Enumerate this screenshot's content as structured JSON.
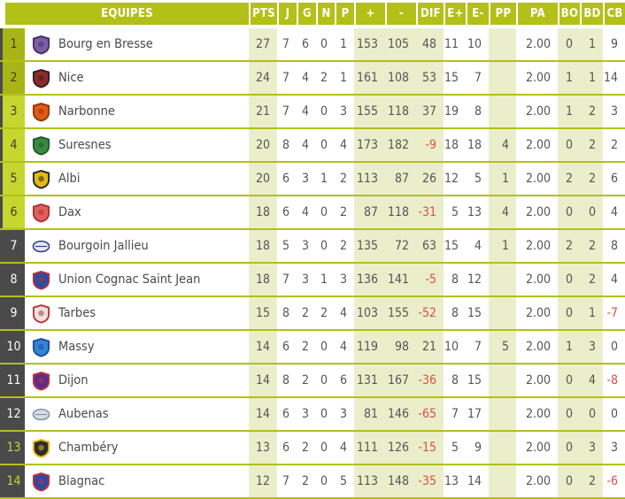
{
  "table": {
    "headers": [
      "EQUIPES",
      "PTS",
      "J",
      "G",
      "N",
      "P",
      "+",
      "-",
      "DIF",
      "E+",
      "E-",
      "PP",
      "PA",
      "BO",
      "BD",
      "CB"
    ],
    "rows": [
      {
        "rank": "1",
        "team": "Bourg en Bresse",
        "zone": "top",
        "logo": {
          "shape": "shield",
          "c1": "#7b5fa5",
          "c2": "#453064"
        },
        "values": [
          "27",
          "7",
          "6",
          "0",
          "1",
          "153",
          "105",
          "48",
          "11",
          "10",
          "",
          "2.00",
          "0",
          "1",
          "9"
        ]
      },
      {
        "rank": "2",
        "team": "Nice",
        "zone": "top",
        "logo": {
          "shape": "shield",
          "c1": "#8f2b2b",
          "c2": "#2e2222"
        },
        "values": [
          "24",
          "7",
          "4",
          "2",
          "1",
          "161",
          "108",
          "53",
          "15",
          "7",
          "",
          "2.00",
          "1",
          "1",
          "14"
        ]
      },
      {
        "rank": "3",
        "team": "Narbonne",
        "zone": "high",
        "logo": {
          "shape": "shield",
          "c1": "#e2590f",
          "c2": "#8a3a10"
        },
        "values": [
          "21",
          "7",
          "4",
          "0",
          "3",
          "155",
          "118",
          "37",
          "19",
          "8",
          "",
          "2.00",
          "1",
          "2",
          "3"
        ]
      },
      {
        "rank": "4",
        "team": "Suresnes",
        "zone": "high",
        "logo": {
          "shape": "shield",
          "c1": "#3a8a3f",
          "c2": "#1f5c2a"
        },
        "values": [
          "20",
          "8",
          "4",
          "0",
          "4",
          "173",
          "182",
          "-9",
          "18",
          "18",
          "4",
          "2.00",
          "0",
          "2",
          "2"
        ]
      },
      {
        "rank": "5",
        "team": "Albi",
        "zone": "high",
        "logo": {
          "shape": "shield",
          "c1": "#e5b913",
          "c2": "#262626"
        },
        "values": [
          "20",
          "6",
          "3",
          "1",
          "2",
          "113",
          "87",
          "26",
          "12",
          "5",
          "1",
          "2.00",
          "2",
          "2",
          "6"
        ]
      },
      {
        "rank": "6",
        "team": "Dax",
        "zone": "high",
        "logo": {
          "shape": "shield",
          "c1": "#e06060",
          "c2": "#b03030"
        },
        "values": [
          "18",
          "6",
          "4",
          "0",
          "2",
          "87",
          "118",
          "-31",
          "5",
          "13",
          "4",
          "2.00",
          "0",
          "0",
          "4"
        ]
      },
      {
        "rank": "7",
        "team": "Bourgoin Jallieu",
        "zone": "mid",
        "logo": {
          "shape": "ball",
          "c1": "#e9e9f2",
          "c2": "#27408f"
        },
        "values": [
          "18",
          "5",
          "3",
          "0",
          "2",
          "135",
          "72",
          "63",
          "15",
          "4",
          "1",
          "2.00",
          "2",
          "2",
          "8"
        ]
      },
      {
        "rank": "8",
        "team": "Union Cognac Saint Jean",
        "zone": "mid",
        "logo": {
          "shape": "shield",
          "c1": "#2b4ea0",
          "c2": "#b03040"
        },
        "values": [
          "18",
          "7",
          "3",
          "1",
          "3",
          "136",
          "141",
          "-5",
          "8",
          "12",
          "",
          "2.00",
          "0",
          "2",
          "4"
        ]
      },
      {
        "rank": "9",
        "team": "Tarbes",
        "zone": "mid",
        "logo": {
          "shape": "shield",
          "c1": "#e8e4e0",
          "c2": "#c03535"
        },
        "values": [
          "15",
          "8",
          "2",
          "2",
          "4",
          "103",
          "155",
          "-52",
          "8",
          "15",
          "",
          "2.00",
          "0",
          "1",
          "-7"
        ]
      },
      {
        "rank": "10",
        "team": "Massy",
        "zone": "mid",
        "logo": {
          "shape": "shield",
          "c1": "#3584d6",
          "c2": "#1d4e9e"
        },
        "values": [
          "14",
          "6",
          "2",
          "0",
          "4",
          "119",
          "98",
          "21",
          "10",
          "7",
          "5",
          "2.00",
          "1",
          "3",
          "0"
        ]
      },
      {
        "rank": "11",
        "team": "Dijon",
        "zone": "mid",
        "logo": {
          "shape": "shield",
          "c1": "#5c2d87",
          "c2": "#c03040"
        },
        "values": [
          "14",
          "8",
          "2",
          "0",
          "6",
          "131",
          "167",
          "-36",
          "8",
          "15",
          "",
          "2.00",
          "0",
          "4",
          "-8"
        ]
      },
      {
        "rank": "12",
        "team": "Aubenas",
        "zone": "mid",
        "logo": {
          "shape": "ball",
          "c1": "#d9dde2",
          "c2": "#7c93ad"
        },
        "values": [
          "14",
          "6",
          "3",
          "0",
          "3",
          "81",
          "146",
          "-65",
          "7",
          "17",
          "",
          "2.00",
          "0",
          "0",
          "0"
        ]
      },
      {
        "rank": "13",
        "team": "Chambéry",
        "zone": "low",
        "logo": {
          "shape": "shield",
          "c1": "#2d2d2d",
          "c2": "#e5b913"
        },
        "values": [
          "13",
          "6",
          "2",
          "0",
          "4",
          "111",
          "126",
          "-15",
          "5",
          "9",
          "",
          "2.00",
          "0",
          "3",
          "3"
        ]
      },
      {
        "rank": "14",
        "team": "Blagnac",
        "zone": "low",
        "logo": {
          "shape": "shield",
          "c1": "#31499e",
          "c2": "#c03040"
        },
        "values": [
          "12",
          "7",
          "2",
          "0",
          "5",
          "113",
          "148",
          "-35",
          "13",
          "14",
          "",
          "2.00",
          "0",
          "2",
          "-6"
        ]
      }
    ]
  },
  "colors": {
    "header_green": "#b3c017",
    "bright_green": "#c7d52f",
    "olive_green": "#a9b516",
    "dark_gray": "#4a4a4a",
    "column_tint": "#eaeecb",
    "negative_red": "#d94f43",
    "text_gray": "#555555"
  }
}
